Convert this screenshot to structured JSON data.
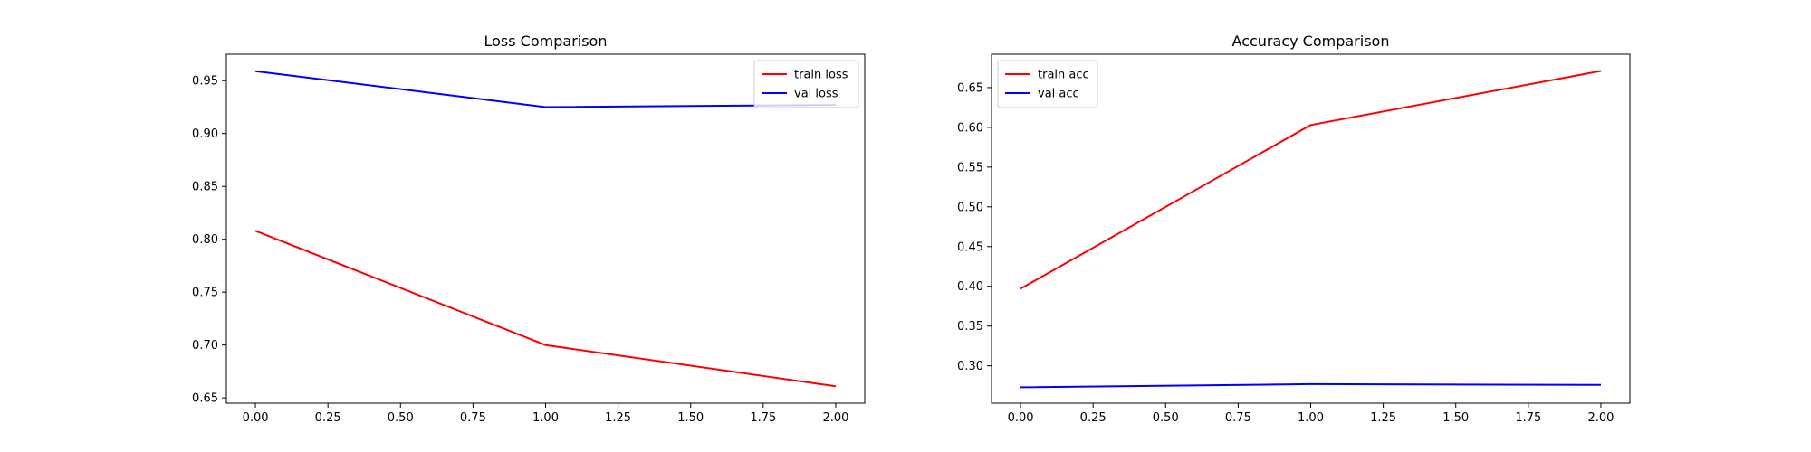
{
  "chart_data": [
    {
      "type": "line",
      "title": "Loss Comparison",
      "xlabel": "",
      "ylabel": "",
      "xlim": [
        -0.1,
        2.1
      ],
      "ylim": [
        0.645,
        0.975
      ],
      "xticks": [
        "0.00",
        "0.25",
        "0.50",
        "0.75",
        "1.00",
        "1.25",
        "1.50",
        "1.75",
        "2.00"
      ],
      "yticks": [
        "0.65",
        "0.70",
        "0.75",
        "0.80",
        "0.85",
        "0.90",
        "0.95"
      ],
      "legend": "upper-right",
      "grid": false,
      "series": [
        {
          "name": "train loss",
          "color": "#ff0000",
          "x": [
            0,
            1,
            2
          ],
          "y": [
            0.808,
            0.7,
            0.661
          ]
        },
        {
          "name": "val loss",
          "color": "#0000ff",
          "x": [
            0,
            1,
            2
          ],
          "y": [
            0.959,
            0.925,
            0.927
          ]
        }
      ]
    },
    {
      "type": "line",
      "title": "Accuracy Comparison",
      "xlabel": "",
      "ylabel": "",
      "xlim": [
        -0.1,
        2.1
      ],
      "ylim": [
        0.253,
        0.692
      ],
      "xticks": [
        "0.00",
        "0.25",
        "0.50",
        "0.75",
        "1.00",
        "1.25",
        "1.50",
        "1.75",
        "2.00"
      ],
      "yticks": [
        "0.30",
        "0.35",
        "0.40",
        "0.45",
        "0.50",
        "0.55",
        "0.60",
        "0.65"
      ],
      "legend": "upper-left",
      "grid": false,
      "series": [
        {
          "name": "train acc",
          "color": "#ff0000",
          "x": [
            0,
            1,
            2
          ],
          "y": [
            0.397,
            0.603,
            0.671
          ]
        },
        {
          "name": "val acc",
          "color": "#0000ff",
          "x": [
            0,
            1,
            2
          ],
          "y": [
            0.273,
            0.277,
            0.276
          ]
        }
      ]
    }
  ]
}
